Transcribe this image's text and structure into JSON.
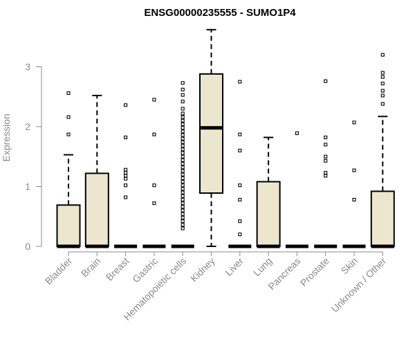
{
  "chart_data": {
    "type": "boxplot",
    "title": "ENSG00000235555 - SUMO1P4",
    "ylabel": "Expression",
    "xlabel": "",
    "ylim": [
      0,
      3.6
    ],
    "yticks": [
      "0",
      "1",
      "2",
      "3"
    ],
    "box_color": "#ede6cf",
    "categories": [
      "Bladder",
      "Brain",
      "Breast",
      "Gastric",
      "Hematopoietic cells",
      "Kidney",
      "Liver",
      "Lung",
      "Pancreas",
      "Prostate",
      "Skin",
      "Unknown / Other"
    ],
    "series": [
      {
        "category": "Bladder",
        "whisker_low": 0,
        "q1": 0,
        "median": 0,
        "q3": 0.69,
        "whisker_high": 1.53,
        "outliers": [
          1.87,
          2.16,
          2.56
        ]
      },
      {
        "category": "Brain",
        "whisker_low": 0,
        "q1": 0,
        "median": 0,
        "q3": 1.22,
        "whisker_high": 2.52,
        "outliers": []
      },
      {
        "category": "Breast",
        "whisker_low": 0,
        "q1": 0,
        "median": 0,
        "q3": 0,
        "whisker_high": 0,
        "outliers": [
          0.82,
          1.02,
          1.13,
          1.18,
          1.23,
          1.28,
          1.82,
          2.36
        ]
      },
      {
        "category": "Gastric",
        "whisker_low": 0,
        "q1": 0,
        "median": 0,
        "q3": 0,
        "whisker_high": 0,
        "outliers": [
          0.72,
          1.02,
          1.87,
          2.45
        ]
      },
      {
        "category": "Hematopoietic cells",
        "whisker_low": 0,
        "q1": 0,
        "median": 0,
        "q3": 0,
        "whisker_high": 0,
        "outliers": [
          0.3,
          0.36,
          0.42,
          0.48,
          0.54,
          0.6,
          0.66,
          0.72,
          0.78,
          0.84,
          0.9,
          0.96,
          1.02,
          1.08,
          1.14,
          1.2,
          1.26,
          1.32,
          1.38,
          1.44,
          1.5,
          1.56,
          1.62,
          1.68,
          1.74,
          1.8,
          1.86,
          1.92,
          1.98,
          2.04,
          2.1,
          2.16,
          2.22,
          2.3,
          2.42,
          2.53,
          2.62,
          2.73
        ]
      },
      {
        "category": "Kidney",
        "whisker_low": 0,
        "q1": 0.89,
        "median": 1.98,
        "q3": 2.88,
        "whisker_high": 3.62,
        "outliers": []
      },
      {
        "category": "Liver",
        "whisker_low": 0,
        "q1": 0,
        "median": 0,
        "q3": 0,
        "whisker_high": 0,
        "outliers": [
          0.2,
          0.42,
          0.78,
          1.02,
          1.6,
          1.87,
          2.75
        ]
      },
      {
        "category": "Lung",
        "whisker_low": 0,
        "q1": 0,
        "median": 0,
        "q3": 1.08,
        "whisker_high": 1.82,
        "outliers": []
      },
      {
        "category": "Pancreas",
        "whisker_low": 0,
        "q1": 0,
        "median": 0,
        "q3": 0,
        "whisker_high": 0,
        "outliers": [
          1.89
        ]
      },
      {
        "category": "Prostate",
        "whisker_low": 0,
        "q1": 0,
        "median": 0,
        "q3": 0,
        "whisker_high": 0,
        "outliers": [
          1.18,
          1.23,
          1.43,
          1.5,
          1.7,
          1.82,
          2.76
        ]
      },
      {
        "category": "Skin",
        "whisker_low": 0,
        "q1": 0,
        "median": 0,
        "q3": 0,
        "whisker_high": 0,
        "outliers": [
          0.78,
          1.27,
          2.07
        ]
      },
      {
        "category": "Unknown / Other",
        "whisker_low": 0,
        "q1": 0,
        "median": 0,
        "q3": 0.92,
        "whisker_high": 2.17,
        "outliers": [
          2.38,
          2.52,
          2.6,
          2.72,
          2.83,
          2.9,
          3.2
        ]
      }
    ]
  }
}
